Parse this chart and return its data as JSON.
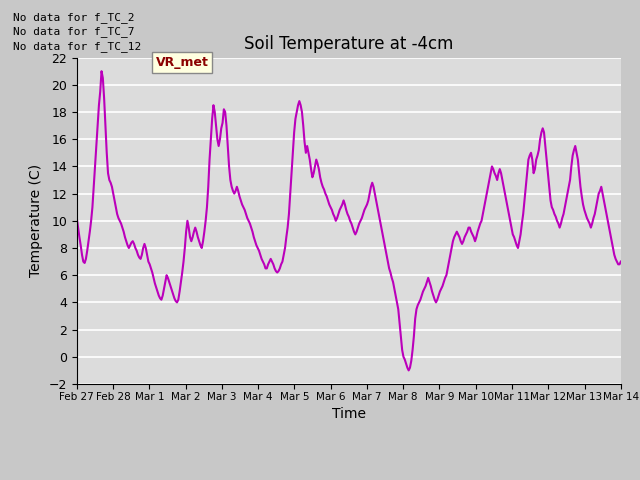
{
  "title": "Soil Temperature at -4cm",
  "xlabel": "Time",
  "ylabel": "Temperature (C)",
  "ylim": [
    -2,
    22
  ],
  "yticks": [
    -2,
    0,
    2,
    4,
    6,
    8,
    10,
    12,
    14,
    16,
    18,
    20,
    22
  ],
  "line_color": "#BB00BB",
  "line_width": 1.5,
  "bg_color": "#DCDCDC",
  "grid_color": "white",
  "fig_bg_color": "#C8C8C8",
  "annotations": [
    "No data for f_TC_2",
    "No data for f_TC_7",
    "No data for f_TC_12"
  ],
  "vr_met_label": "VR_met",
  "x_tick_labels": [
    "Feb 27",
    "Feb 28",
    "Mar 1",
    "Mar 2",
    "Mar 3",
    "Mar 4",
    "Mar 5",
    "Mar 6",
    "Mar 7",
    "Mar 8",
    "Mar 9",
    "Mar 10",
    "Mar 11",
    "Mar 12",
    "Mar 13",
    "Mar 14"
  ],
  "x_tick_positions": [
    0,
    24,
    48,
    72,
    96,
    120,
    144,
    168,
    192,
    216,
    240,
    264,
    288,
    312,
    336,
    360
  ],
  "xlim": [
    0,
    360
  ],
  "time_series": [
    10.2,
    9.5,
    8.8,
    8.2,
    7.5,
    7.0,
    6.9,
    7.2,
    7.8,
    8.5,
    9.2,
    10.0,
    11.0,
    12.5,
    14.0,
    15.5,
    17.0,
    18.5,
    19.5,
    21.0,
    20.5,
    19.0,
    17.0,
    15.0,
    13.5,
    13.0,
    12.8,
    12.5,
    12.0,
    11.5,
    11.0,
    10.5,
    10.2,
    10.0,
    9.8,
    9.5,
    9.2,
    8.8,
    8.5,
    8.2,
    8.0,
    8.2,
    8.4,
    8.5,
    8.3,
    8.0,
    7.8,
    7.5,
    7.3,
    7.2,
    7.5,
    8.0,
    8.3,
    8.0,
    7.5,
    7.0,
    6.8,
    6.5,
    6.2,
    5.8,
    5.4,
    5.1,
    4.8,
    4.5,
    4.3,
    4.2,
    4.5,
    5.0,
    5.5,
    6.0,
    5.8,
    5.5,
    5.2,
    4.9,
    4.6,
    4.3,
    4.1,
    4.0,
    4.2,
    4.8,
    5.5,
    6.2,
    7.0,
    8.0,
    9.2,
    10.0,
    9.5,
    8.8,
    8.5,
    8.8,
    9.2,
    9.5,
    9.2,
    8.8,
    8.5,
    8.2,
    8.0,
    8.5,
    9.2,
    10.0,
    11.0,
    12.5,
    14.5,
    16.0,
    17.5,
    18.5,
    18.0,
    17.0,
    16.0,
    15.5,
    16.0,
    16.8,
    17.2,
    18.2,
    18.0,
    17.0,
    15.5,
    14.0,
    13.0,
    12.5,
    12.2,
    12.0,
    12.2,
    12.5,
    12.2,
    11.8,
    11.5,
    11.2,
    11.0,
    10.8,
    10.5,
    10.2,
    10.0,
    9.8,
    9.5,
    9.2,
    8.8,
    8.5,
    8.2,
    8.0,
    7.8,
    7.5,
    7.2,
    7.0,
    6.8,
    6.5,
    6.5,
    6.8,
    7.0,
    7.2,
    7.0,
    6.8,
    6.5,
    6.3,
    6.2,
    6.3,
    6.5,
    6.8,
    7.0,
    7.5,
    8.0,
    8.8,
    9.5,
    10.5,
    12.0,
    13.5,
    15.0,
    16.5,
    17.5,
    18.0,
    18.5,
    18.8,
    18.5,
    18.0,
    17.0,
    15.8,
    15.0,
    15.5,
    15.0,
    14.5,
    13.8,
    13.2,
    13.5,
    14.0,
    14.5,
    14.2,
    13.8,
    13.2,
    12.8,
    12.5,
    12.3,
    12.0,
    11.8,
    11.5,
    11.2,
    11.0,
    10.8,
    10.5,
    10.3,
    10.0,
    10.2,
    10.5,
    10.8,
    11.0,
    11.2,
    11.5,
    11.2,
    10.8,
    10.5,
    10.3,
    10.0,
    9.8,
    9.5,
    9.2,
    9.0,
    9.2,
    9.5,
    9.8,
    10.0,
    10.2,
    10.5,
    10.8,
    11.0,
    11.2,
    11.5,
    12.0,
    12.5,
    12.8,
    12.5,
    12.0,
    11.5,
    11.0,
    10.5,
    10.0,
    9.5,
    9.0,
    8.5,
    8.0,
    7.5,
    7.0,
    6.5,
    6.2,
    5.8,
    5.5,
    5.0,
    4.5,
    4.0,
    3.5,
    2.5,
    1.5,
    0.5,
    0.0,
    -0.2,
    -0.5,
    -0.8,
    -1.0,
    -0.8,
    -0.3,
    0.5,
    1.5,
    2.8,
    3.5,
    3.8,
    4.0,
    4.2,
    4.5,
    4.8,
    5.0,
    5.2,
    5.5,
    5.8,
    5.5,
    5.2,
    4.8,
    4.5,
    4.2,
    4.0,
    4.2,
    4.5,
    4.8,
    5.0,
    5.2,
    5.5,
    5.8,
    6.0,
    6.5,
    7.0,
    7.5,
    8.0,
    8.5,
    8.8,
    9.0,
    9.2,
    9.0,
    8.8,
    8.5,
    8.3,
    8.5,
    8.8,
    9.0,
    9.2,
    9.5,
    9.5,
    9.2,
    9.0,
    8.8,
    8.5,
    8.8,
    9.2,
    9.5,
    9.8,
    10.0,
    10.5,
    11.0,
    11.5,
    12.0,
    12.5,
    13.0,
    13.5,
    14.0,
    13.8,
    13.5,
    13.3,
    13.0,
    13.5,
    13.8,
    13.5,
    13.0,
    12.5,
    12.0,
    11.5,
    11.0,
    10.5,
    10.0,
    9.5,
    9.0,
    8.8,
    8.5,
    8.2,
    8.0,
    8.5,
    9.0,
    9.8,
    10.5,
    11.5,
    12.5,
    13.5,
    14.5,
    14.8,
    15.0,
    14.5,
    13.5,
    13.8,
    14.5,
    14.8,
    15.2,
    16.0,
    16.5,
    16.8,
    16.5,
    15.5,
    14.5,
    13.5,
    12.5,
    11.5,
    11.0,
    10.8,
    10.5,
    10.3,
    10.0,
    9.8,
    9.5,
    9.8,
    10.2,
    10.5,
    11.0,
    11.5,
    12.0,
    12.5,
    13.0,
    14.0,
    14.8,
    15.2,
    15.5,
    15.0,
    14.5,
    13.5,
    12.5,
    11.8,
    11.2,
    10.8,
    10.5,
    10.2,
    10.0,
    9.8,
    9.5,
    9.8,
    10.2,
    10.5,
    11.0,
    11.5,
    12.0,
    12.2,
    12.5,
    12.0,
    11.5,
    11.0,
    10.5,
    10.0,
    9.5,
    9.0,
    8.5,
    8.0,
    7.5,
    7.2,
    7.0,
    6.8,
    6.8,
    7.0
  ]
}
